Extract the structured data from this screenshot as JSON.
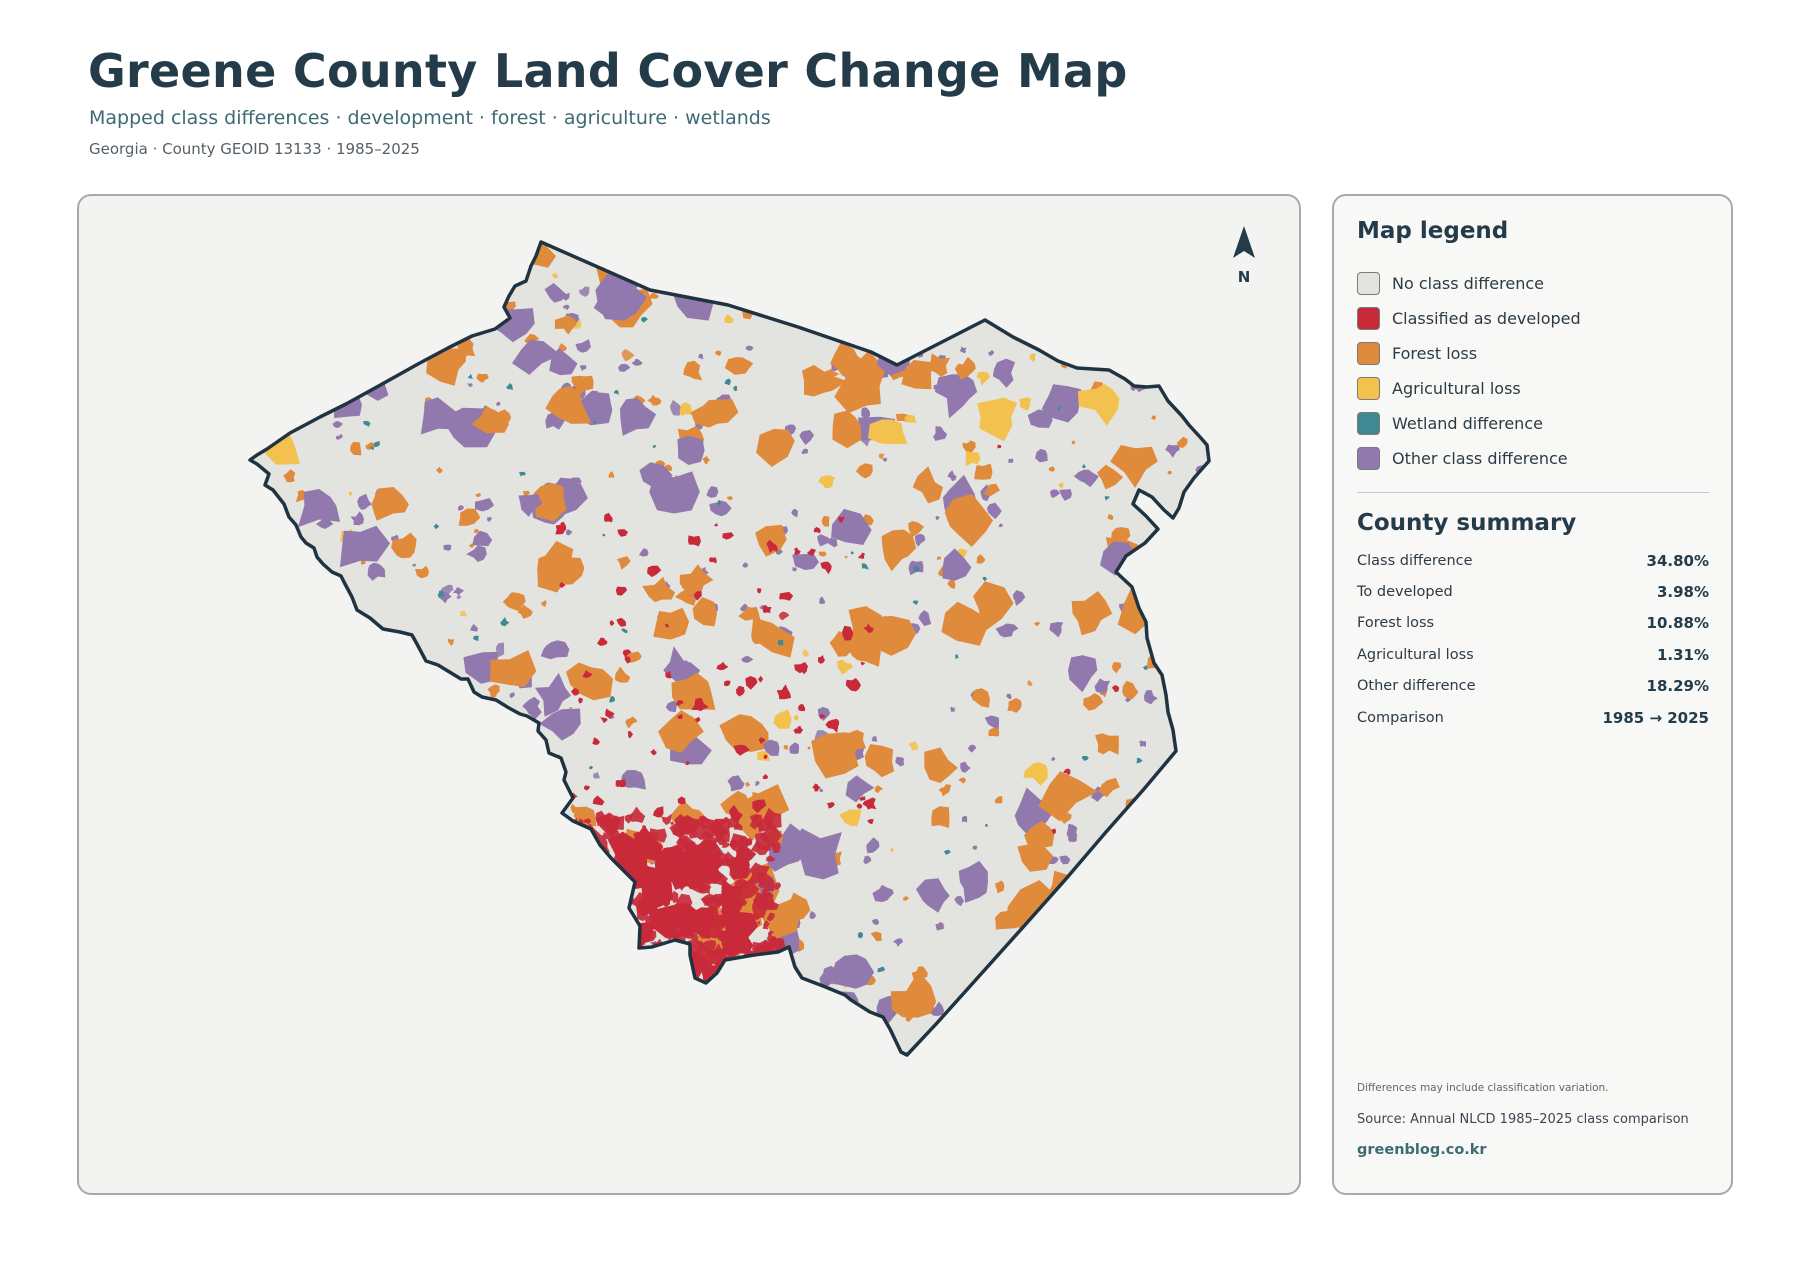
{
  "header": {
    "title": "Greene County Land Cover Change Map",
    "subtitle": "Mapped class differences · development · forest · agriculture · wetlands",
    "meta": "Georgia · County GEOID 13133 · 1985–2025"
  },
  "map": {
    "north_label": "N",
    "colors": {
      "outline": "#1f3340",
      "background": "#f3f3f1"
    }
  },
  "legend": {
    "title": "Map legend",
    "items": [
      {
        "label": "No class difference",
        "color": "#e3e3df"
      },
      {
        "label": "Classified as developed",
        "color": "#c82a3a"
      },
      {
        "label": "Forest loss",
        "color": "#e08a3c"
      },
      {
        "label": "Agricultural loss",
        "color": "#f2c14e"
      },
      {
        "label": "Wetland difference",
        "color": "#3f8a92"
      },
      {
        "label": "Other class difference",
        "color": "#9179ad"
      }
    ]
  },
  "summary": {
    "title": "County summary",
    "rows": [
      {
        "label": "Class difference",
        "value": "34.80%"
      },
      {
        "label": "To developed",
        "value": "3.98%"
      },
      {
        "label": "Forest loss",
        "value": "10.88%"
      },
      {
        "label": "Agricultural loss",
        "value": "1.31%"
      },
      {
        "label": "Other difference",
        "value": "18.29%"
      },
      {
        "label": "Comparison",
        "value": "1985 → 2025"
      }
    ]
  },
  "footer": {
    "note": "Differences may include classification variation.",
    "source": "Source: Annual NLCD 1985–2025 class comparison",
    "site": "greenblog.co.kr"
  }
}
